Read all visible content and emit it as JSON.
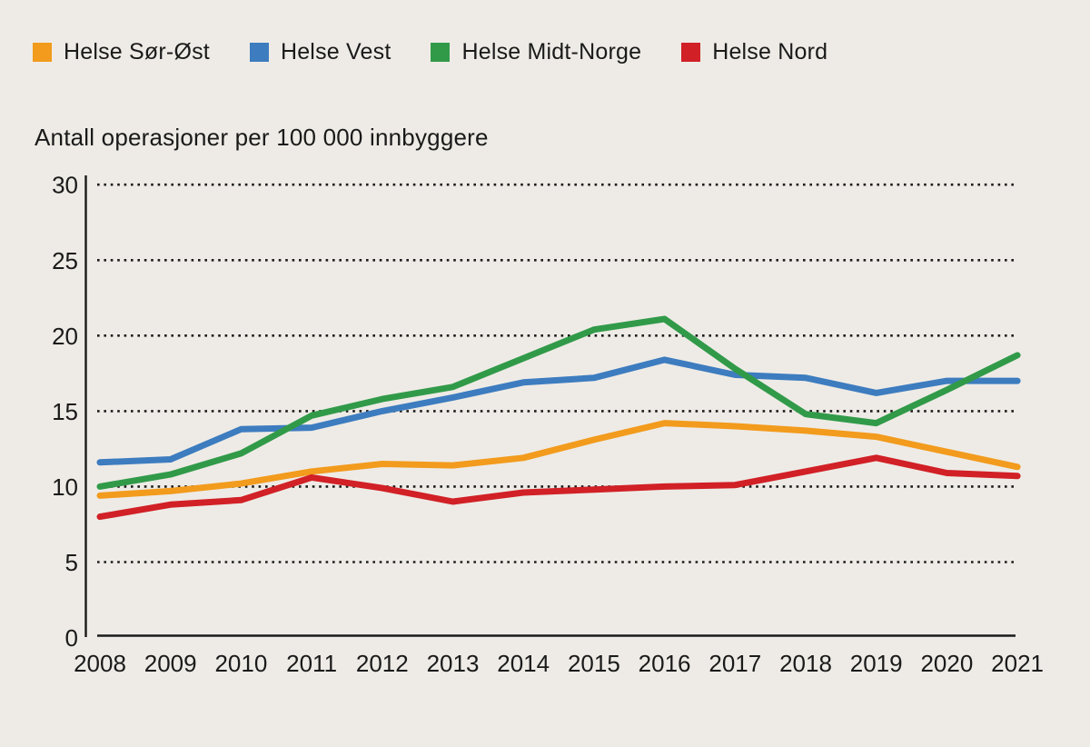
{
  "legend": [
    {
      "label": "Helse Sør-Øst",
      "color": "#F29B1D"
    },
    {
      "label": "Helse Vest",
      "color": "#3D7CBF"
    },
    {
      "label": "Helse Midt-Norge",
      "color": "#319A49"
    },
    {
      "label": "Helse Nord",
      "color": "#D12026"
    }
  ],
  "chart_data": {
    "type": "line",
    "title": "Antall operasjoner per 100 000 innbyggere",
    "x": [
      2008,
      2009,
      2010,
      2011,
      2012,
      2013,
      2014,
      2015,
      2016,
      2017,
      2018,
      2019,
      2020,
      2021
    ],
    "series": [
      {
        "name": "Helse Sør-Øst",
        "color": "#F29B1D",
        "values": [
          9.4,
          9.7,
          10.2,
          11.0,
          11.5,
          11.4,
          11.9,
          13.1,
          14.2,
          14.0,
          13.7,
          13.3,
          12.3,
          11.3
        ]
      },
      {
        "name": "Helse Vest",
        "color": "#3D7CBF",
        "values": [
          11.6,
          11.8,
          13.8,
          13.9,
          15.0,
          15.9,
          16.9,
          17.2,
          18.4,
          17.4,
          17.2,
          16.2,
          17.0,
          17.0
        ]
      },
      {
        "name": "Helse Midt-Norge",
        "color": "#319A49",
        "values": [
          10.0,
          10.8,
          12.2,
          14.7,
          15.8,
          16.6,
          18.5,
          20.4,
          21.1,
          17.8,
          14.8,
          14.2,
          16.4,
          18.7
        ]
      },
      {
        "name": "Helse Nord",
        "color": "#D12026",
        "values": [
          8.0,
          8.8,
          9.1,
          10.6,
          9.9,
          9.0,
          9.6,
          9.8,
          10.0,
          10.1,
          11.0,
          11.9,
          10.9,
          10.7
        ]
      }
    ],
    "xlabel": "",
    "ylabel": "Antall operasjoner per 100 000 innbyggere",
    "ylim": [
      0,
      30
    ],
    "yticks": [
      0,
      5,
      10,
      15,
      20,
      25,
      30
    ],
    "grid": "horizontal-dotted",
    "legend_position": "top-left"
  },
  "colors": {
    "background": "#EEEBE6",
    "text": "#1A1A1A",
    "axis": "#1A1A1A"
  }
}
